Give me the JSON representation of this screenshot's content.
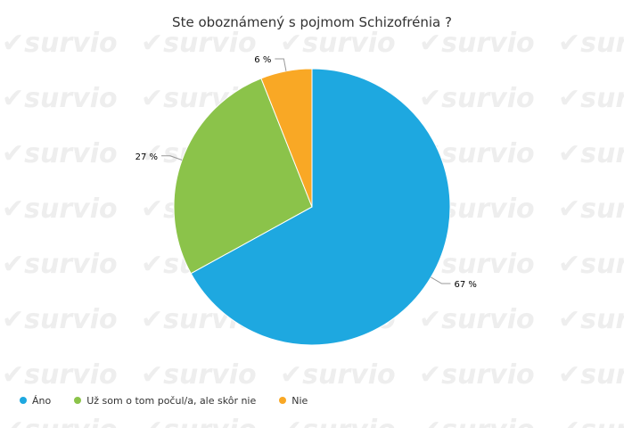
{
  "chart_data": {
    "type": "pie",
    "title": "Ste oboznámený s pojmom Schizofrénia ?",
    "categories": [
      "Áno",
      "Už som o tom počul/a, ale skôr nie",
      "Nie"
    ],
    "values": [
      67,
      27,
      6
    ],
    "data_labels": [
      "67 %",
      "27 %",
      "6 %"
    ],
    "colors": [
      "#1ea8e0",
      "#8bc34a",
      "#f9a825"
    ],
    "legend_position": "bottom-left"
  },
  "watermark": {
    "text": "survio"
  }
}
